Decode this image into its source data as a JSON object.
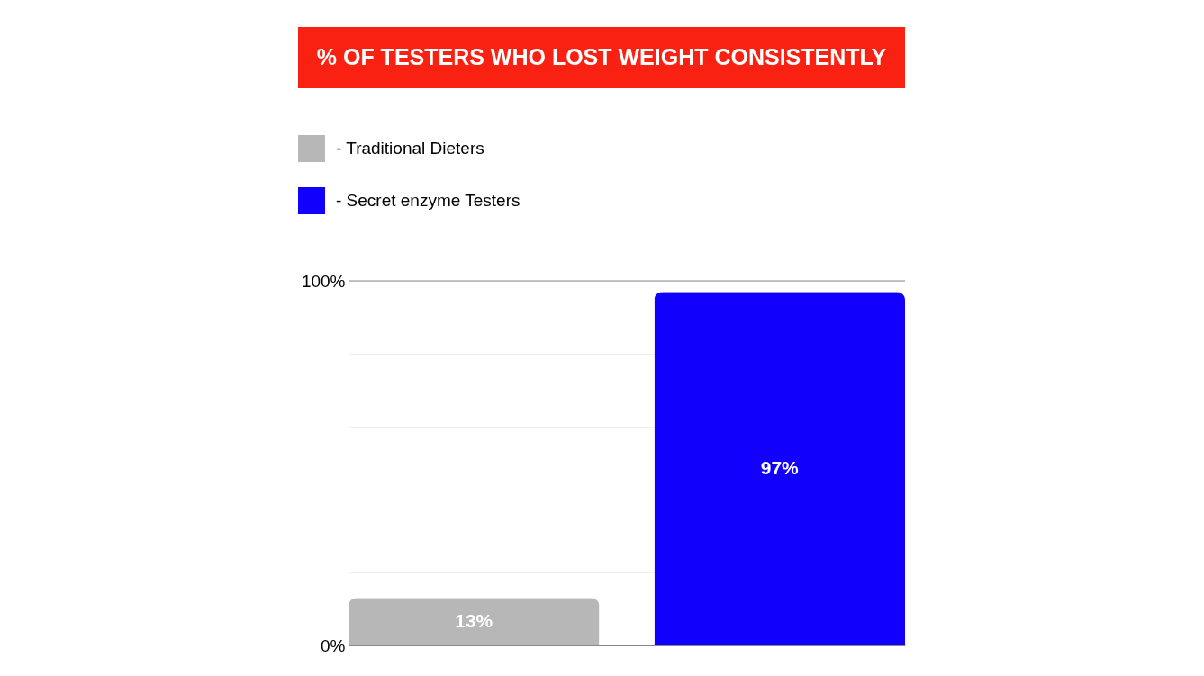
{
  "chart_data": {
    "type": "bar",
    "title": "% OF TESTERS WHO LOST WEIGHT CONSISTENTLY",
    "categories": [
      null,
      null
    ],
    "series": [
      {
        "name": "- Traditional Dieters",
        "color": "#b7b7b7",
        "values": [
          13,
          null
        ],
        "value_labels": [
          "13%",
          null
        ]
      },
      {
        "name": "- Secret enzyme Testers",
        "color": "#1100fb",
        "values": [
          null,
          97
        ],
        "value_labels": [
          null,
          "97%"
        ]
      }
    ],
    "ylim": [
      0,
      100
    ],
    "yticks": [
      {
        "value": 0,
        "label": "0%"
      },
      {
        "value": 20,
        "label": null
      },
      {
        "value": 40,
        "label": null
      },
      {
        "value": 60,
        "label": null
      },
      {
        "value": 80,
        "label": null
      },
      {
        "value": 100,
        "label": "100%"
      }
    ],
    "grid": "y",
    "legend": "top left",
    "tick_labels": "y"
  }
}
